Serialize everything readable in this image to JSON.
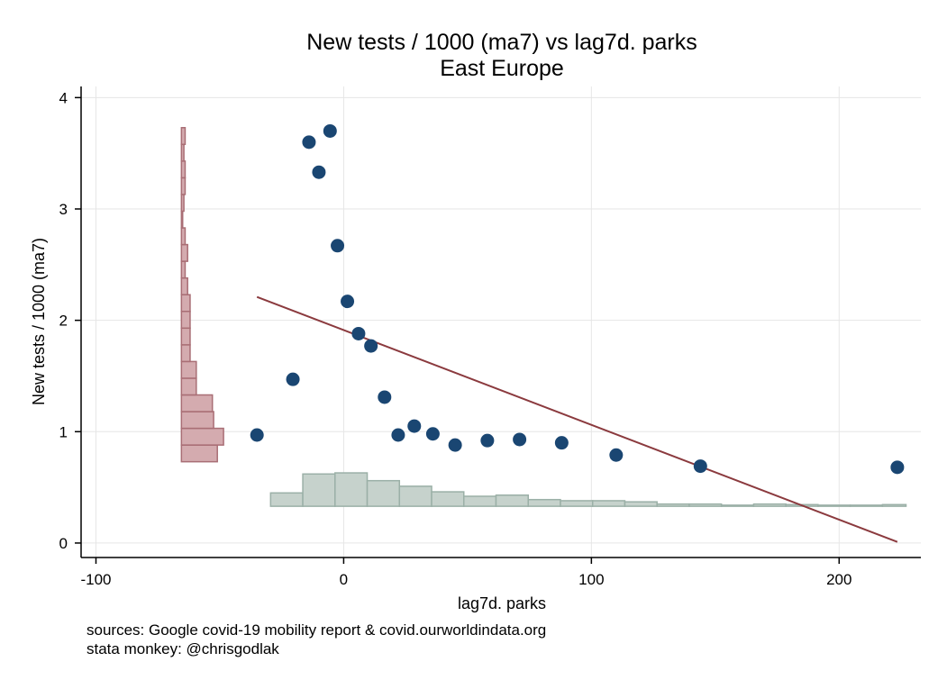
{
  "chart_data": {
    "type": "scatter",
    "title": "New tests / 1000 (ma7) vs lag7d. parks",
    "subtitle": "East Europe",
    "xlabel": "lag7d. parks",
    "ylabel": "New tests / 1000 (ma7)",
    "xlim": [
      -106,
      233
    ],
    "ylim": [
      -0.13,
      4.1
    ],
    "xticks": [
      -100,
      0,
      100,
      200
    ],
    "xtick_labels": [
      "-100",
      "0",
      "100",
      "200"
    ],
    "yticks": [
      0,
      1,
      2,
      3,
      4
    ],
    "ytick_labels": [
      "0",
      "1",
      "2",
      "3",
      "4"
    ],
    "grid": true,
    "points": [
      {
        "x": -35,
        "y": 0.97
      },
      {
        "x": -20.5,
        "y": 1.47
      },
      {
        "x": -14,
        "y": 3.6
      },
      {
        "x": -10,
        "y": 3.33
      },
      {
        "x": -5.5,
        "y": 3.7
      },
      {
        "x": -2.5,
        "y": 2.67
      },
      {
        "x": 1.5,
        "y": 2.17
      },
      {
        "x": 6,
        "y": 1.88
      },
      {
        "x": 11,
        "y": 1.77
      },
      {
        "x": 16.5,
        "y": 1.31
      },
      {
        "x": 22,
        "y": 0.97
      },
      {
        "x": 28.5,
        "y": 1.05
      },
      {
        "x": 36,
        "y": 0.98
      },
      {
        "x": 45,
        "y": 0.88
      },
      {
        "x": 58,
        "y": 0.92
      },
      {
        "x": 71,
        "y": 0.93
      },
      {
        "x": 88,
        "y": 0.9
      },
      {
        "x": 110,
        "y": 0.79
      },
      {
        "x": 144,
        "y": 0.69
      },
      {
        "x": 223.5,
        "y": 0.68
      }
    ],
    "fit_line": {
      "x": [
        -35,
        223.5
      ],
      "y": [
        2.21,
        0.01
      ]
    },
    "x_histogram": {
      "baseline_y": 0.33,
      "bin_edges": [
        -29.5,
        -16.5,
        -3.5,
        9.5,
        22.5,
        35.5,
        48.5,
        61.5,
        74.5,
        87.5,
        100.5,
        113.5,
        126.5,
        139.5,
        152.5,
        165.5,
        178.5,
        191.5,
        204.5,
        217.5,
        227
      ],
      "tops": [
        0.45,
        0.62,
        0.63,
        0.56,
        0.51,
        0.46,
        0.42,
        0.43,
        0.39,
        0.38,
        0.38,
        0.37,
        0.35,
        0.35,
        0.34,
        0.35,
        0.345,
        0.34,
        0.34,
        0.345
      ]
    },
    "y_histogram": {
      "baseline_x": -65.5,
      "bins": [
        {
          "y0": 0.73,
          "y1": 0.88,
          "x": -51
        },
        {
          "y0": 0.88,
          "y1": 1.03,
          "x": -48.5
        },
        {
          "y0": 1.03,
          "y1": 1.18,
          "x": -52.5
        },
        {
          "y0": 1.18,
          "y1": 1.33,
          "x": -53
        },
        {
          "y0": 1.33,
          "y1": 1.48,
          "x": -59.5
        },
        {
          "y0": 1.48,
          "y1": 1.63,
          "x": -59.5
        },
        {
          "y0": 1.63,
          "y1": 1.78,
          "x": -62
        },
        {
          "y0": 1.78,
          "y1": 1.93,
          "x": -62
        },
        {
          "y0": 1.93,
          "y1": 2.08,
          "x": -62
        },
        {
          "y0": 2.08,
          "y1": 2.23,
          "x": -62
        },
        {
          "y0": 2.23,
          "y1": 2.38,
          "x": -63
        },
        {
          "y0": 2.38,
          "y1": 2.53,
          "x": -64
        },
        {
          "y0": 2.53,
          "y1": 2.68,
          "x": -63
        },
        {
          "y0": 2.68,
          "y1": 2.83,
          "x": -64
        },
        {
          "y0": 2.83,
          "y1": 2.98,
          "x": -65
        },
        {
          "y0": 2.98,
          "y1": 3.13,
          "x": -64.5
        },
        {
          "y0": 3.13,
          "y1": 3.28,
          "x": -64
        },
        {
          "y0": 3.28,
          "y1": 3.43,
          "x": -64
        },
        {
          "y0": 3.43,
          "y1": 3.58,
          "x": -64.5
        },
        {
          "y0": 3.58,
          "y1": 3.73,
          "x": -64
        }
      ]
    },
    "colors": {
      "points": "#1a4672",
      "fit_line": "#8b3a3e",
      "x_hist_fill": "#c6d2cc",
      "x_hist_stroke": "#9bb0a7",
      "y_hist_fill": "#d4abaf",
      "y_hist_stroke": "#a96e75",
      "grid": "#e6e6e6",
      "axis": "#000000"
    }
  },
  "notes": {
    "sources": "sources: Google covid-19 mobility report & covid.ourworldindata.org",
    "credit": "stata monkey: @chrisgodlak"
  }
}
